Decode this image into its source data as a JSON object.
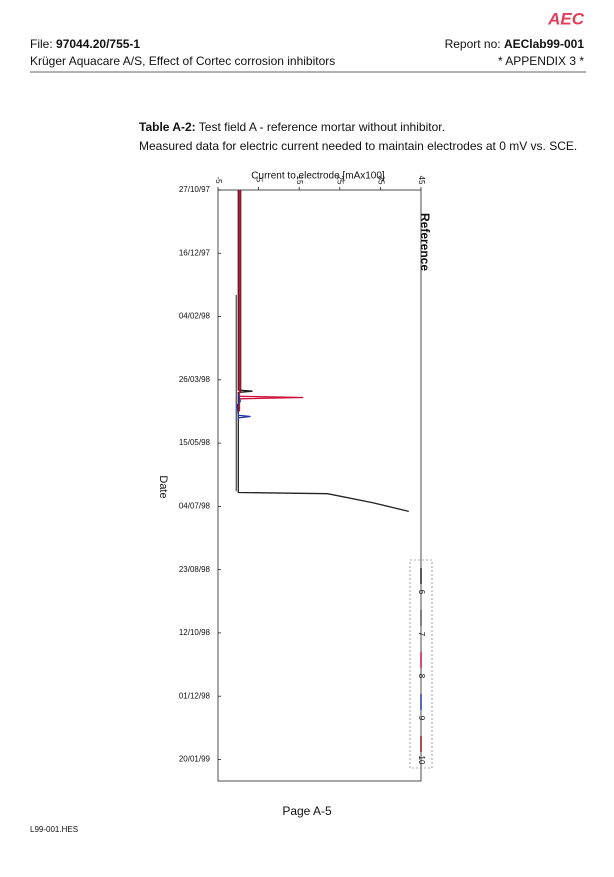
{
  "header": {
    "logo": "AEC",
    "file_label": "File:",
    "file_no": "97044.20/755-1",
    "report_label": "Report no:",
    "report_no": "AEClab99-001",
    "company": "Krüger Aquacare A/S, Effect of Cortec corrosion inhibitors",
    "appendix": "* APPENDIX 3 *"
  },
  "caption": {
    "label": "Table A-2:",
    "text": "Test field A - reference mortar without inhibitor.",
    "line2": "Measured data for electric current needed to maintain electrodes at 0 mV vs. SCE."
  },
  "chart_data": {
    "type": "line",
    "x_label": "Current to electrode [mAx100]",
    "y_label": "Date",
    "annotation": "Reference",
    "xlim": [
      -5,
      45
    ],
    "xticks": [
      -5,
      5,
      15,
      25,
      35,
      45
    ],
    "ylim": [
      "27/10/97",
      "06/02/99"
    ],
    "yticks": [
      "27/10/97",
      "16/12/97",
      "04/02/98",
      "26/03/98",
      "15/05/98",
      "04/07/98",
      "23/08/98",
      "12/10/98",
      "01/12/98",
      "20/01/99"
    ],
    "series": [
      {
        "name": "6",
        "color": "#222222",
        "x": [
          "27/10/97",
          "03/04/98",
          "04/04/98",
          "05/04/98",
          "22/06/98",
          "23/06/98",
          "24/06/98",
          "01/07/98",
          "08/07/98"
        ],
        "values": [
          0,
          0,
          3.5,
          0,
          0,
          0,
          22,
          33,
          42
        ]
      },
      {
        "name": "7",
        "color": "#555555",
        "x": [
          "18/01/98",
          "22/06/98"
        ],
        "values": [
          -0.5,
          -0.5
        ]
      },
      {
        "name": "8",
        "color": "#d0103a",
        "x": [
          "27/10/97",
          "08/04/98",
          "09/04/98",
          "10/04/98",
          "20/04/98"
        ],
        "values": [
          0.3,
          0.3,
          16,
          0.3,
          0.3
        ]
      },
      {
        "name": "9",
        "color": "#2233aa",
        "x": [
          "06/04/98",
          "12/04/98",
          "15/04/98",
          "23/04/98",
          "24/04/98",
          "25/04/98",
          "27/04/98"
        ],
        "values": [
          0,
          0.5,
          -0.3,
          0,
          3,
          0,
          0
        ]
      },
      {
        "name": "10",
        "color": "#8b1020",
        "x": [
          "27/10/97",
          "05/04/98"
        ],
        "values": [
          0.6,
          0.6
        ]
      }
    ]
  },
  "footer": {
    "page": "Page A-5",
    "file": "L99-001.HES"
  }
}
